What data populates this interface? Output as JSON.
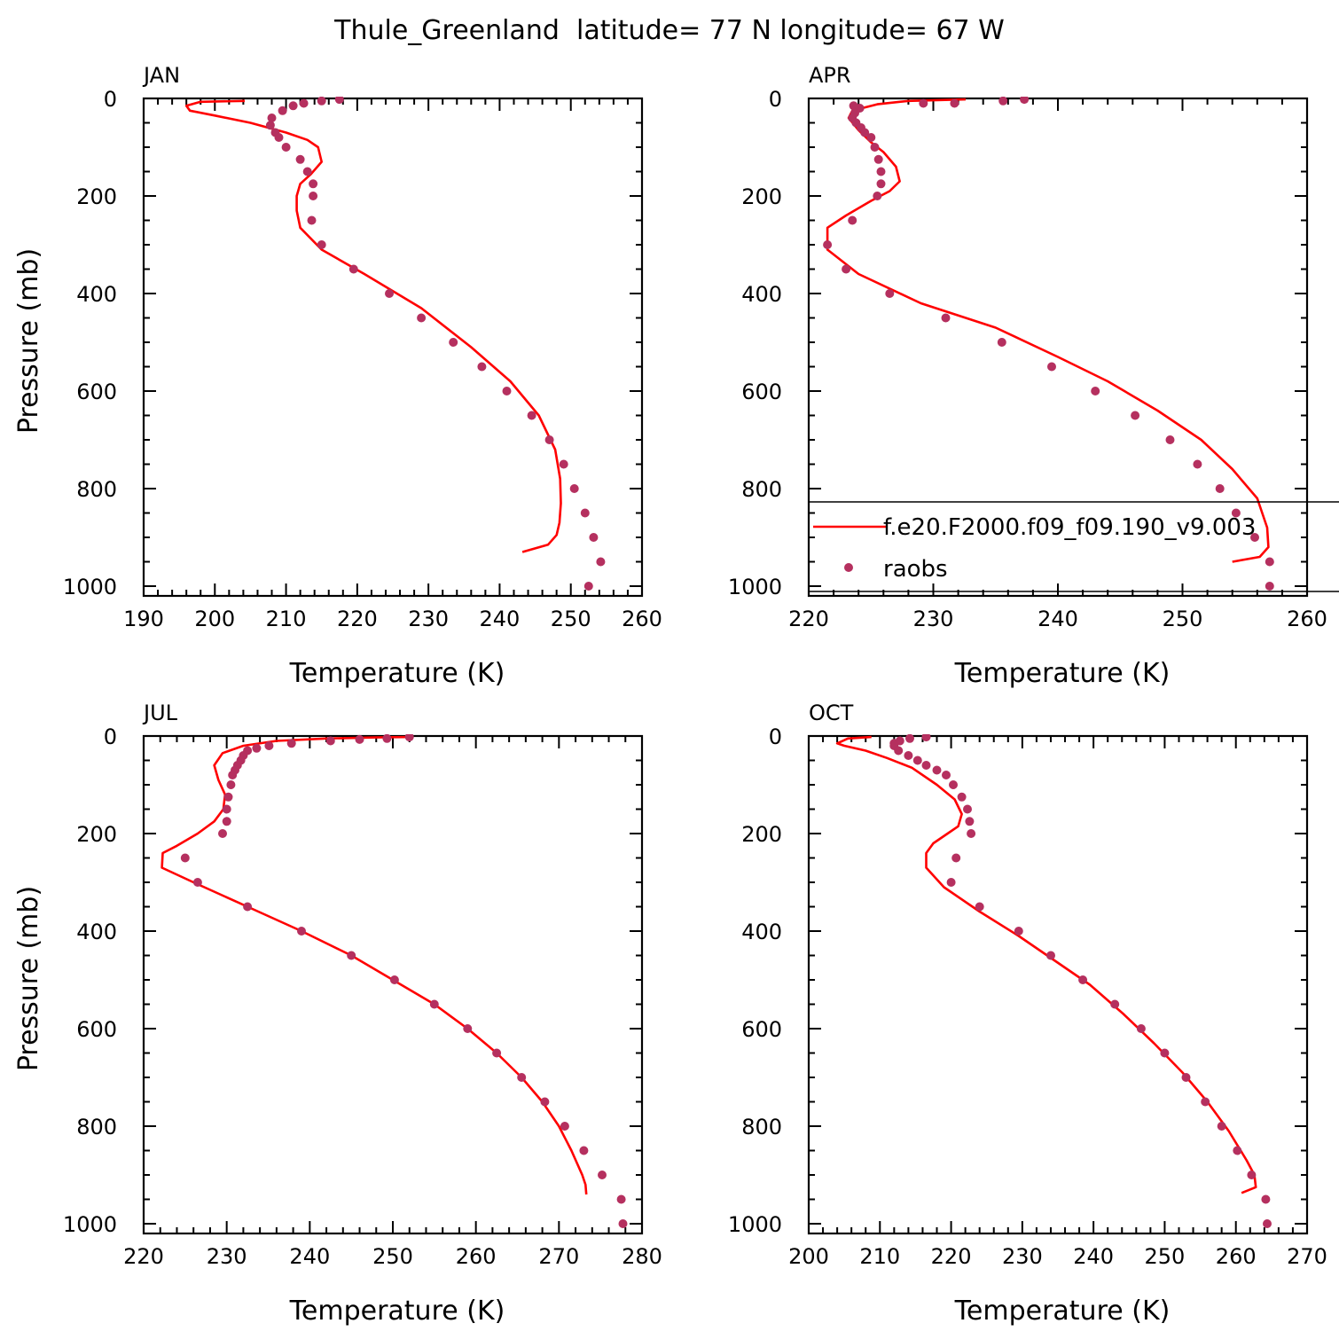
{
  "title": "Thule_Greenland  latitude= 77 N longitude= 67 W",
  "legend": {
    "model_label": "f.e20.F2000.f09_f09.190_v9.003",
    "obs_label": "raobs"
  },
  "colors": {
    "model_line": "#ff0000",
    "obs_marker": "#b5305f",
    "axis": "#000000"
  },
  "chart_data": [
    {
      "type": "line",
      "panel": "JAN",
      "xlabel": "Temperature (K)",
      "ylabel": "Pressure (mb)",
      "xlim": [
        190,
        260
      ],
      "ylim": [
        0,
        1000
      ],
      "y_inverted": true,
      "xticks": [
        190,
        200,
        210,
        220,
        230,
        240,
        250,
        260
      ],
      "yticks": [
        0,
        200,
        400,
        600,
        800,
        1000
      ],
      "series": [
        {
          "name": "f.e20.F2000.f09_f09.190_v9.003",
          "style": "line",
          "points": [
            [
              204.2,
              5
            ],
            [
              198,
              7
            ],
            [
              196,
              15
            ],
            [
              196.5,
              25
            ],
            [
              200,
              35
            ],
            [
              205,
              50
            ],
            [
              210,
              70
            ],
            [
              213,
              85
            ],
            [
              214.5,
              100
            ],
            [
              215,
              130
            ],
            [
              213.5,
              155
            ],
            [
              212,
              175
            ],
            [
              211.5,
              200
            ],
            [
              211.5,
              230
            ],
            [
              212,
              265
            ],
            [
              215,
              310
            ],
            [
              221,
              360
            ],
            [
              229,
              430
            ],
            [
              236,
              510
            ],
            [
              241.5,
              580
            ],
            [
              245.5,
              650
            ],
            [
              247.8,
              720
            ],
            [
              248.5,
              780
            ],
            [
              248.6,
              830
            ],
            [
              248.4,
              870
            ],
            [
              248,
              895
            ],
            [
              246.8,
              915
            ],
            [
              243.2,
              930
            ]
          ]
        },
        {
          "name": "raobs",
          "style": "markers",
          "points": [
            [
              217.5,
              2
            ],
            [
              215,
              5
            ],
            [
              212.5,
              10
            ],
            [
              211,
              15
            ],
            [
              209.5,
              25
            ],
            [
              208,
              40
            ],
            [
              207.8,
              55
            ],
            [
              208.5,
              70
            ],
            [
              209,
              80
            ],
            [
              210,
              100
            ],
            [
              212,
              125
            ],
            [
              213,
              150
            ],
            [
              213.8,
              175
            ],
            [
              213.8,
              200
            ],
            [
              213.6,
              250
            ],
            [
              215,
              300
            ],
            [
              219.5,
              350
            ],
            [
              224.5,
              400
            ],
            [
              229,
              450
            ],
            [
              233.5,
              500
            ],
            [
              237.5,
              550
            ],
            [
              241,
              600
            ],
            [
              244.5,
              650
            ],
            [
              247,
              700
            ],
            [
              249,
              750
            ],
            [
              250.5,
              800
            ],
            [
              252,
              850
            ],
            [
              253.2,
              900
            ],
            [
              254.2,
              950
            ],
            [
              252.5,
              1000
            ]
          ]
        }
      ]
    },
    {
      "type": "line",
      "panel": "APR",
      "xlabel": "Temperature (K)",
      "ylabel": "",
      "xlim": [
        220,
        260
      ],
      "ylim": [
        0,
        1000
      ],
      "y_inverted": true,
      "xticks": [
        220,
        230,
        240,
        250,
        260
      ],
      "yticks": [
        0,
        200,
        400,
        600,
        800,
        1000
      ],
      "series": [
        {
          "name": "f.e20.F2000.f09_f09.190_v9.003",
          "style": "line",
          "points": [
            [
              232.6,
              2
            ],
            [
              228,
              5
            ],
            [
              225.5,
              12
            ],
            [
              223.5,
              25
            ],
            [
              223.2,
              40
            ],
            [
              224,
              65
            ],
            [
              225,
              90
            ],
            [
              226,
              110
            ],
            [
              227,
              140
            ],
            [
              227.3,
              170
            ],
            [
              226.5,
              190
            ],
            [
              225,
              210
            ],
            [
              223,
              240
            ],
            [
              221.5,
              265
            ],
            [
              221.5,
              310
            ],
            [
              224,
              360
            ],
            [
              229,
              420
            ],
            [
              235,
              470
            ],
            [
              240,
              530
            ],
            [
              244,
              580
            ],
            [
              248,
              640
            ],
            [
              251.5,
              700
            ],
            [
              254,
              760
            ],
            [
              256,
              820
            ],
            [
              256.8,
              880
            ],
            [
              256.9,
              920
            ],
            [
              256.2,
              940
            ],
            [
              254,
              950
            ]
          ]
        },
        {
          "name": "raobs",
          "style": "markers",
          "points": [
            [
              237.3,
              2
            ],
            [
              235.6,
              5
            ],
            [
              231.7,
              10
            ],
            [
              229.2,
              10
            ],
            [
              223.6,
              15
            ],
            [
              224.1,
              20
            ],
            [
              223.7,
              30
            ],
            [
              223.5,
              40
            ],
            [
              223.8,
              50
            ],
            [
              224.2,
              60
            ],
            [
              224.5,
              70
            ],
            [
              225,
              80
            ],
            [
              225.3,
              100
            ],
            [
              225.6,
              125
            ],
            [
              225.8,
              150
            ],
            [
              225.8,
              175
            ],
            [
              225.5,
              200
            ],
            [
              223.5,
              250
            ],
            [
              221.5,
              300
            ],
            [
              223,
              350
            ],
            [
              226.5,
              400
            ],
            [
              231,
              450
            ],
            [
              235.5,
              500
            ],
            [
              239.5,
              550
            ],
            [
              243,
              600
            ],
            [
              246.2,
              650
            ],
            [
              249,
              700
            ],
            [
              251.2,
              750
            ],
            [
              253,
              800
            ],
            [
              254.3,
              850
            ],
            [
              255.8,
              900
            ],
            [
              257,
              950
            ],
            [
              257,
              1000
            ]
          ]
        }
      ]
    },
    {
      "type": "line",
      "panel": "JUL",
      "xlabel": "Temperature (K)",
      "ylabel": "Pressure (mb)",
      "xlim": [
        220,
        280
      ],
      "ylim": [
        0,
        1000
      ],
      "y_inverted": true,
      "xticks": [
        220,
        230,
        240,
        250,
        260,
        270,
        280
      ],
      "yticks": [
        0,
        200,
        400,
        600,
        800,
        1000
      ],
      "series": [
        {
          "name": "f.e20.F2000.f09_f09.190_v9.003",
          "style": "line",
          "points": [
            [
              252.3,
              2
            ],
            [
              248,
              3
            ],
            [
              242,
              5
            ],
            [
              236,
              10
            ],
            [
              232,
              20
            ],
            [
              229.5,
              35
            ],
            [
              228.5,
              60
            ],
            [
              229,
              90
            ],
            [
              229.8,
              120
            ],
            [
              229.6,
              150
            ],
            [
              228.5,
              175
            ],
            [
              226.5,
              200
            ],
            [
              224,
              225
            ],
            [
              222.3,
              240
            ],
            [
              222.2,
              270
            ],
            [
              226,
              300
            ],
            [
              232.5,
              350
            ],
            [
              239,
              400
            ],
            [
              245,
              450
            ],
            [
              250,
              500
            ],
            [
              255,
              550
            ],
            [
              259,
              600
            ],
            [
              262.5,
              650
            ],
            [
              265.5,
              700
            ],
            [
              268,
              750
            ],
            [
              270,
              800
            ],
            [
              271.5,
              850
            ],
            [
              272.8,
              900
            ],
            [
              273.2,
              920
            ],
            [
              273.3,
              940
            ]
          ]
        },
        {
          "name": "raobs",
          "style": "markers",
          "points": [
            [
              252,
              2
            ],
            [
              249.3,
              5
            ],
            [
              246,
              7
            ],
            [
              242.5,
              10
            ],
            [
              237.8,
              15
            ],
            [
              235.1,
              20
            ],
            [
              233.6,
              25
            ],
            [
              232.5,
              30
            ],
            [
              232,
              40
            ],
            [
              231.7,
              50
            ],
            [
              231.3,
              60
            ],
            [
              231,
              70
            ],
            [
              230.7,
              80
            ],
            [
              230.5,
              100
            ],
            [
              230.2,
              125
            ],
            [
              230,
              150
            ],
            [
              230,
              175
            ],
            [
              229.5,
              200
            ],
            [
              225,
              250
            ],
            [
              226.5,
              300
            ],
            [
              232.5,
              350
            ],
            [
              239,
              400
            ],
            [
              245,
              450
            ],
            [
              250.2,
              500
            ],
            [
              255,
              550
            ],
            [
              259,
              600
            ],
            [
              262.5,
              650
            ],
            [
              265.5,
              700
            ],
            [
              268.3,
              750
            ],
            [
              270.7,
              800
            ],
            [
              273,
              850
            ],
            [
              275.2,
              900
            ],
            [
              277.5,
              950
            ],
            [
              277.7,
              1000
            ]
          ]
        }
      ]
    },
    {
      "type": "line",
      "panel": "OCT",
      "xlabel": "Temperature (K)",
      "ylabel": "",
      "xlim": [
        200,
        270
      ],
      "ylim": [
        0,
        1000
      ],
      "y_inverted": true,
      "xticks": [
        200,
        210,
        220,
        230,
        240,
        250,
        260,
        270
      ],
      "yticks": [
        0,
        200,
        400,
        600,
        800,
        1000
      ],
      "series": [
        {
          "name": "f.e20.F2000.f09_f09.190_v9.003",
          "style": "line",
          "points": [
            [
              208.8,
              2
            ],
            [
              205.5,
              5
            ],
            [
              204,
              15
            ],
            [
              205,
              20
            ],
            [
              208,
              30
            ],
            [
              211,
              45
            ],
            [
              214.5,
              65
            ],
            [
              218,
              100
            ],
            [
              220.5,
              130
            ],
            [
              221.5,
              160
            ],
            [
              221,
              185
            ],
            [
              219.5,
              200
            ],
            [
              217.5,
              220
            ],
            [
              216.5,
              240
            ],
            [
              216.5,
              270
            ],
            [
              219,
              310
            ],
            [
              224,
              360
            ],
            [
              229.5,
              410
            ],
            [
              234.5,
              460
            ],
            [
              239.5,
              510
            ],
            [
              244.2,
              570
            ],
            [
              248.5,
              630
            ],
            [
              252.5,
              690
            ],
            [
              256,
              750
            ],
            [
              259,
              810
            ],
            [
              261.5,
              870
            ],
            [
              262.6,
              900
            ],
            [
              262.8,
              925
            ],
            [
              260.8,
              937
            ]
          ]
        },
        {
          "name": "raobs",
          "style": "markers",
          "points": [
            [
              216.5,
              2
            ],
            [
              214.2,
              5
            ],
            [
              212.8,
              10
            ],
            [
              212,
              15
            ],
            [
              212,
              20
            ],
            [
              212.6,
              30
            ],
            [
              214,
              40
            ],
            [
              215.3,
              50
            ],
            [
              216.5,
              60
            ],
            [
              218,
              70
            ],
            [
              219.3,
              80
            ],
            [
              220.3,
              100
            ],
            [
              221.5,
              125
            ],
            [
              222.3,
              150
            ],
            [
              222.6,
              175
            ],
            [
              222.8,
              200
            ],
            [
              220.7,
              250
            ],
            [
              220,
              300
            ],
            [
              224,
              350
            ],
            [
              229.5,
              400
            ],
            [
              234,
              450
            ],
            [
              238.5,
              500
            ],
            [
              243,
              550
            ],
            [
              246.7,
              600
            ],
            [
              250,
              650
            ],
            [
              253,
              700
            ],
            [
              255.7,
              750
            ],
            [
              258,
              800
            ],
            [
              260.2,
              850
            ],
            [
              262.2,
              900
            ],
            [
              264.2,
              950
            ],
            [
              264.4,
              1000
            ]
          ]
        }
      ]
    }
  ]
}
